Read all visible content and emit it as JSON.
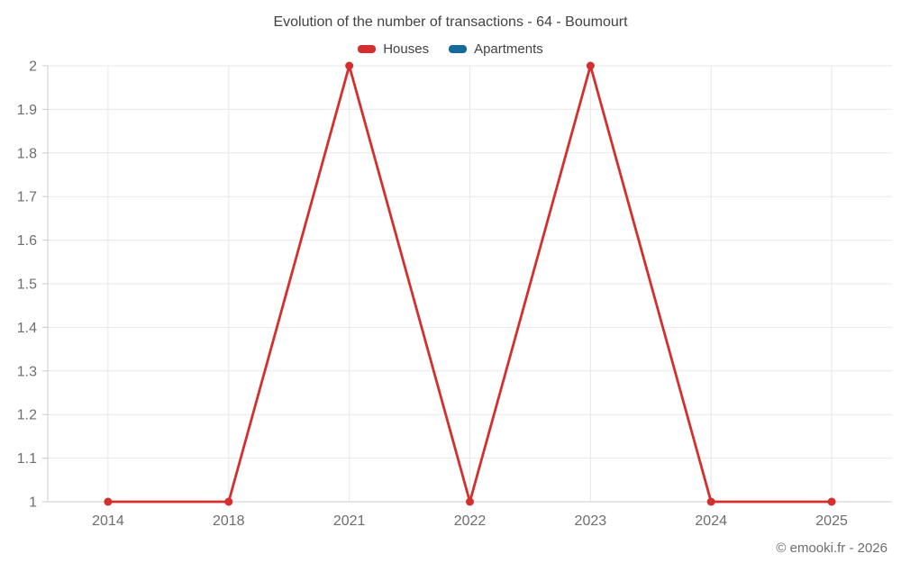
{
  "chart_data": {
    "type": "line",
    "title": "Evolution of the number of transactions - 64 - Boumourt",
    "categories": [
      "2014",
      "2018",
      "2021",
      "2022",
      "2023",
      "2024",
      "2025"
    ],
    "series": [
      {
        "name": "Houses",
        "color": "#d32f2f",
        "values": [
          1,
          1,
          2,
          1,
          2,
          1,
          1
        ]
      },
      {
        "name": "Apartments",
        "color": "#166a9e",
        "values": []
      }
    ],
    "ylim": [
      1,
      2
    ],
    "yticks": [
      "1",
      "1.1",
      "1.2",
      "1.3",
      "1.4",
      "1.5",
      "1.6",
      "1.7",
      "1.8",
      "1.9",
      "2"
    ],
    "grid": true,
    "legend_position": "top",
    "xlabel": "",
    "ylabel": ""
  },
  "footer": {
    "copyright": "© emooki.fr - 2026"
  },
  "colors": {
    "grid": "#e8e8e8",
    "axis": "#cccccc",
    "tick_label": "#6e6e6e",
    "title": "#424242",
    "background": "#ffffff"
  }
}
